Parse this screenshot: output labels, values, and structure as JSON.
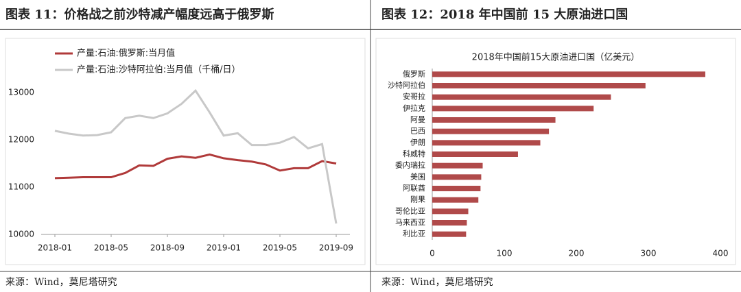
{
  "panels": [
    {
      "heading": "图表 11：价格战之前沙特减产幅度远高于俄罗斯",
      "source": "来源：Wind，莫尼塔研究"
    },
    {
      "heading": "图表 12：2018 年中国前 15 大原油进口国",
      "source": "来源：Wind，莫尼塔研究"
    }
  ],
  "chart_data": [
    {
      "type": "line",
      "categories": [
        "2018-01",
        null,
        null,
        null,
        "2018-05",
        null,
        null,
        null,
        "2018-09",
        null,
        null,
        null,
        "2019-01",
        null,
        null,
        null,
        "2019-05",
        null,
        null,
        null,
        "2019-09"
      ],
      "series": [
        {
          "name": "产量:石油:俄罗斯:当月值",
          "color": "#b03a3a",
          "values": [
            11190,
            11200,
            11210,
            11210,
            11210,
            11300,
            11460,
            11450,
            11600,
            11650,
            11620,
            11690,
            11610,
            11570,
            11540,
            11480,
            11350,
            11400,
            11400,
            11550,
            11500
          ]
        },
        {
          "name": "产量:石油:沙特阿拉伯:当月值（千桶/日）",
          "color": "#c8c8c8",
          "values": [
            12190,
            12130,
            12090,
            12100,
            12160,
            12460,
            12510,
            12460,
            12560,
            12760,
            13040,
            12580,
            12090,
            12140,
            11890,
            11890,
            11940,
            12060,
            11820,
            11910,
            10230
          ]
        }
      ],
      "ylim": [
        10000,
        14000
      ],
      "yticks": [
        10000,
        11000,
        12000,
        13000
      ]
    },
    {
      "type": "hbar",
      "title": "2018年中国前15大原油进口国（亿美元）",
      "categories": [
        "俄罗斯",
        "沙特阿拉伯",
        "安哥拉",
        "伊拉克",
        "阿曼",
        "巴西",
        "伊朗",
        "科威特",
        "委内瑞拉",
        "美国",
        "阿联酋",
        "刚果",
        "哥伦比亚",
        "马来西亚",
        "利比亚"
      ],
      "values": [
        379,
        296,
        248,
        224,
        171,
        162,
        150,
        119,
        70,
        68,
        67,
        64,
        50,
        48,
        47
      ],
      "color": "#b04a4a",
      "xlim": [
        0,
        400
      ],
      "xticks": [
        0,
        100,
        200,
        300,
        400
      ]
    }
  ]
}
